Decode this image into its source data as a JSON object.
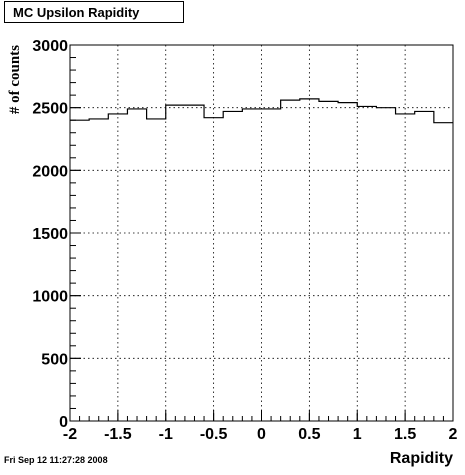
{
  "chart_data": {
    "type": "histogram",
    "title": "MC Upsilon Rapidity",
    "xlabel": "Rapidity",
    "ylabel": "# of counts",
    "xlim": [
      -2,
      2
    ],
    "ylim": [
      0,
      3000
    ],
    "grid": true,
    "bin_edges": [
      -2.0,
      -1.8,
      -1.6,
      -1.4,
      -1.2,
      -1.0,
      -0.8,
      -0.6,
      -0.4,
      -0.2,
      0.0,
      0.2,
      0.4,
      0.6,
      0.8,
      1.0,
      1.2,
      1.4,
      1.6,
      1.8,
      2.0
    ],
    "values": [
      2400,
      2410,
      2450,
      2490,
      2410,
      2520,
      2520,
      2420,
      2470,
      2490,
      2490,
      2560,
      2570,
      2550,
      2540,
      2510,
      2500,
      2450,
      2470,
      2380
    ],
    "x_ticks": [
      "-2",
      "-1.5",
      "-1",
      "-0.5",
      "0",
      "0.5",
      "1",
      "1.5",
      "2"
    ],
    "y_ticks": [
      "0",
      "500",
      "1000",
      "1500",
      "2000",
      "2500",
      "3000"
    ]
  },
  "footer": {
    "timestamp": "Fri Sep 12 11:27:28 2008"
  }
}
